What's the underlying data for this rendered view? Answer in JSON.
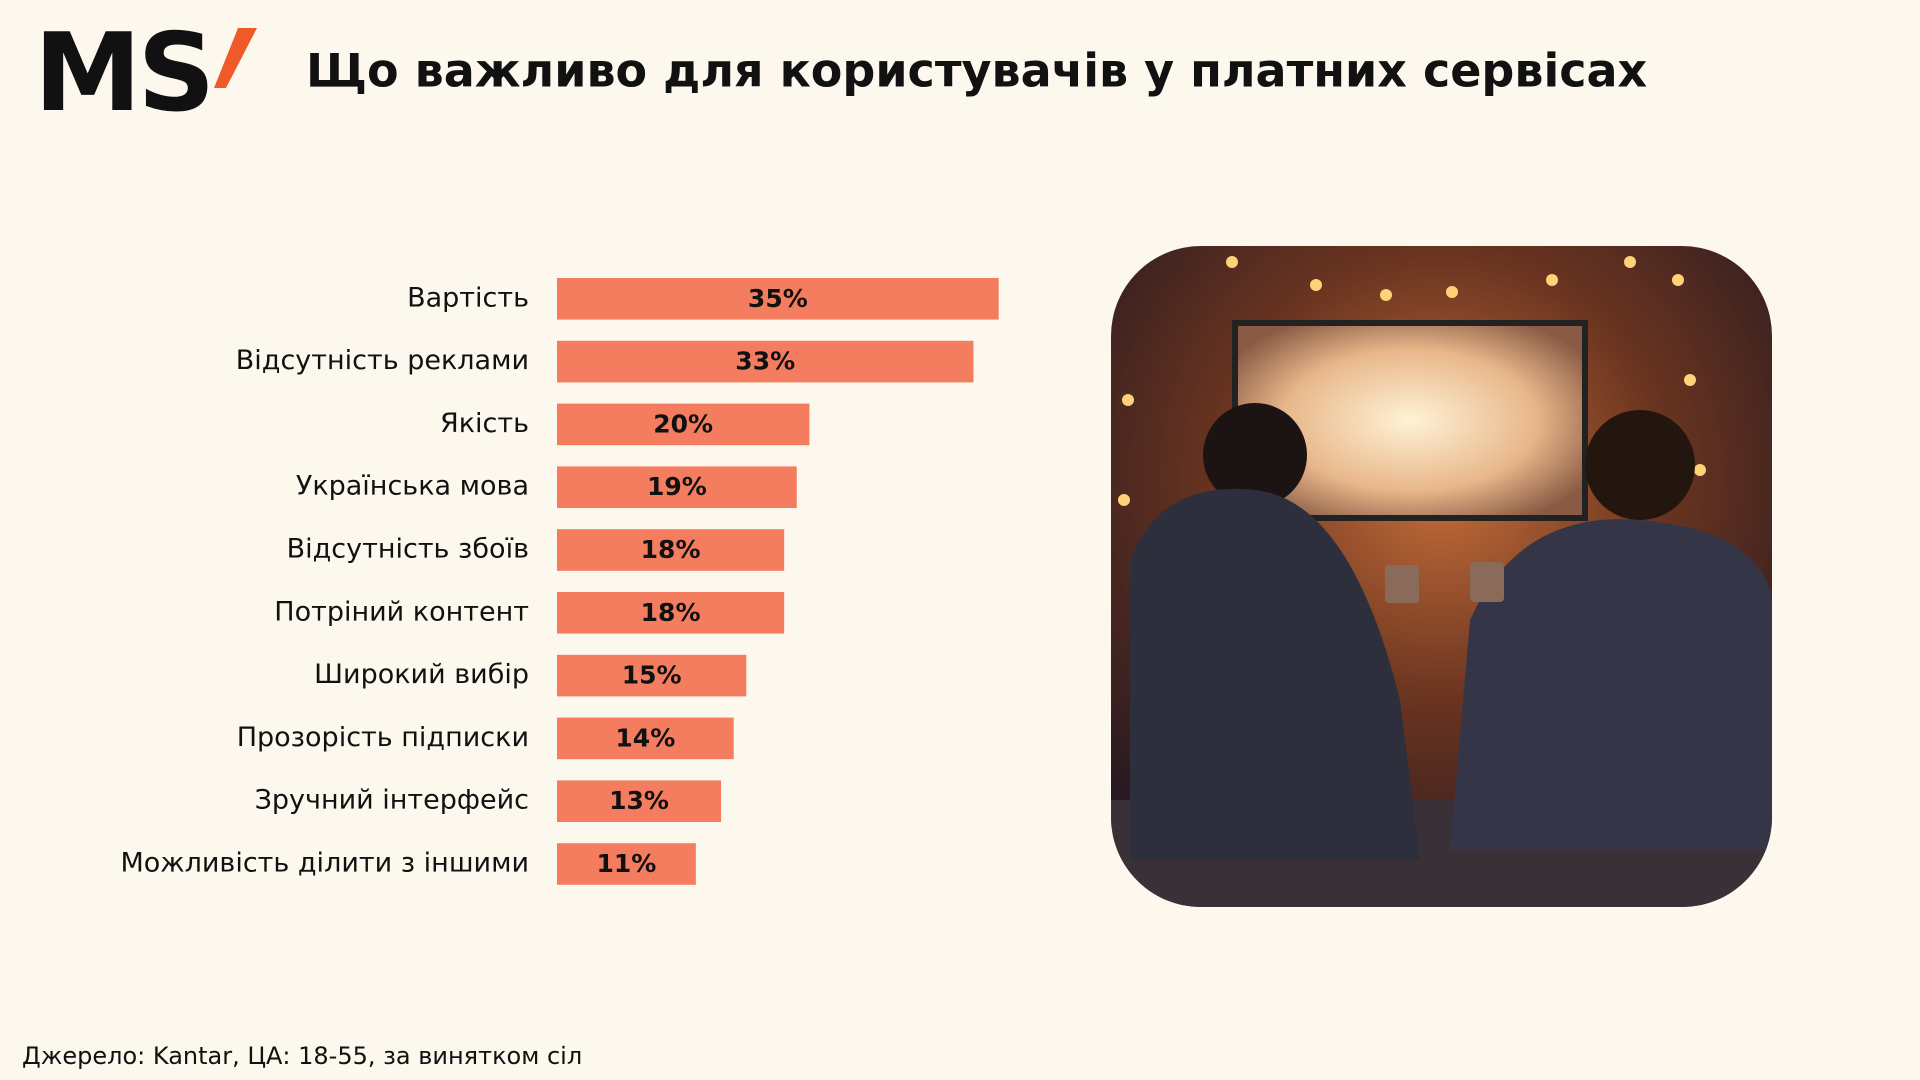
{
  "logo": "MS",
  "chart_data": {
    "type": "bar",
    "orientation": "horizontal",
    "title": "Що важливо для користувачів у платних сервісах",
    "categories": [
      "Вартість",
      "Відсутність реклами",
      "Якість",
      "Українська мова",
      "Відсутність збоїв",
      "Потріний контент",
      "Широкий вибір",
      "Прозорість підписки",
      "Зручний інтерфейс",
      "Можливість ділити з іншими"
    ],
    "values": [
      35,
      33,
      20,
      19,
      18,
      18,
      15,
      14,
      13,
      11
    ],
    "value_labels": [
      "35%",
      "33%",
      "20%",
      "19%",
      "18%",
      "18%",
      "15%",
      "14%",
      "13%",
      "11%"
    ],
    "color": "#f47c5f",
    "note": "Джерело: Kantar, ЦА: 18-55, за винятком сіл"
  }
}
